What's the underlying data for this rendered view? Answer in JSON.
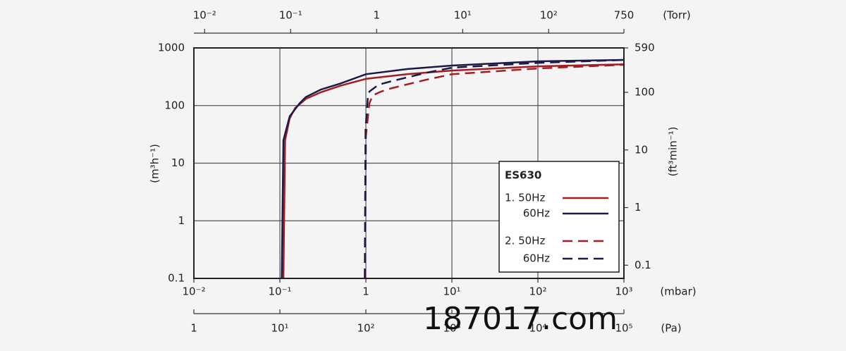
{
  "chart_data": {
    "type": "line",
    "log_x": true,
    "log_y": true,
    "grid": true,
    "legend": {
      "title": "ES630",
      "corner": "lower right"
    },
    "xlabel": "(mbar)",
    "x2label": "(Torr)",
    "x3label": "(Pa)",
    "ylabel": "(m³h⁻¹)",
    "y2label": "(ft³min⁻¹)",
    "xlim": [
      0.01,
      1000
    ],
    "xticks": [
      {
        "value": 0.01,
        "label": "10⁻²"
      },
      {
        "value": 0.1,
        "label": "10⁻¹"
      },
      1,
      {
        "value": 10,
        "label": "10¹"
      },
      {
        "value": 100,
        "label": "10²"
      },
      {
        "value": 1000,
        "label": "10³"
      }
    ],
    "x2lim": [
      0.0075,
      750
    ],
    "x2ticks": [
      {
        "value": 0.01,
        "label": "10⁻²"
      },
      {
        "value": 0.1,
        "label": "10⁻¹"
      },
      1,
      {
        "value": 10,
        "label": "10¹"
      },
      {
        "value": 100,
        "label": "10²"
      },
      750
    ],
    "x3lim": [
      1,
      100000
    ],
    "x3ticks": [
      1,
      {
        "value": 10,
        "label": "10¹"
      },
      {
        "value": 100,
        "label": "10²"
      },
      {
        "value": 1000,
        "label": "10³"
      },
      {
        "value": 10000,
        "label": "10⁴"
      },
      {
        "value": 100000,
        "label": "10⁵"
      }
    ],
    "ylim": [
      0.1,
      1000
    ],
    "yticks": [
      0.1,
      1,
      10,
      100,
      1000
    ],
    "y2lim": [
      0.059,
      590
    ],
    "y2ticks": [
      0.1,
      1,
      10,
      100,
      590
    ],
    "series": [
      {
        "name": "1. 50Hz",
        "color": "#a31e22",
        "style": "solid",
        "x": [
          0.11,
          0.115,
          0.13,
          0.15,
          0.2,
          0.3,
          0.5,
          1,
          3,
          10,
          100,
          1000
        ],
        "values": [
          0.1,
          25,
          60,
          90,
          130,
          170,
          220,
          290,
          350,
          405,
          480,
          520
        ]
      },
      {
        "name": "60Hz",
        "color": "#1c1a48",
        "style": "solid",
        "x": [
          0.105,
          0.11,
          0.13,
          0.17,
          0.2,
          0.3,
          0.5,
          1,
          3,
          10,
          100,
          1000
        ],
        "values": [
          0.1,
          25,
          65,
          110,
          140,
          190,
          240,
          350,
          430,
          495,
          585,
          620
        ]
      },
      {
        "name": "2. 50Hz",
        "color": "#a31e22",
        "style": "dashed",
        "x": [
          0.98,
          1.0,
          1.1,
          1.2,
          1.5,
          2,
          5,
          10,
          100,
          1000
        ],
        "values": [
          0.1,
          30,
          110,
          150,
          175,
          200,
          280,
          350,
          440,
          510
        ]
      },
      {
        "name": "60Hz",
        "color": "#1c1a48",
        "style": "dashed",
        "x": [
          0.97,
          0.99,
          1.05,
          1.1,
          1.4,
          2,
          5,
          10,
          100,
          1000
        ],
        "values": [
          0.1,
          40,
          130,
          175,
          230,
          265,
          370,
          455,
          550,
          620
        ]
      }
    ]
  },
  "watermark": "187017.com"
}
